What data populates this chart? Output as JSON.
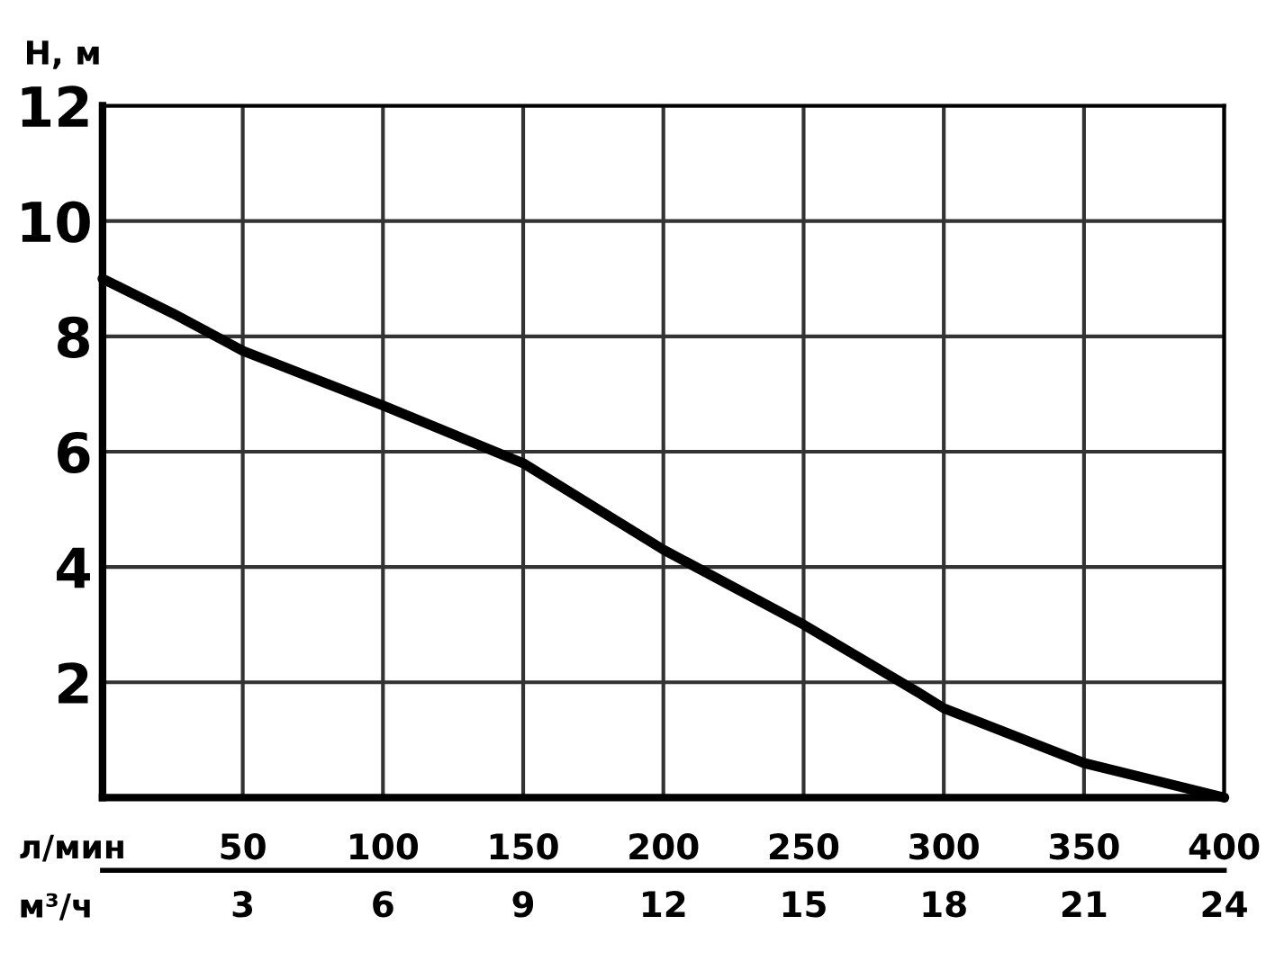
{
  "chart_data": {
    "type": "line",
    "ylabel": "H, м",
    "xlabel": "л/мин",
    "x2label": "м³/ч",
    "x": [
      0,
      25,
      50,
      100,
      150,
      200,
      250,
      290,
      300,
      350,
      400
    ],
    "series": [
      {
        "color": "#000000",
        "values": [
          9.0,
          8.4,
          7.75,
          6.8,
          5.8,
          4.3,
          3.0,
          1.85,
          1.55,
          0.6,
          0
        ]
      }
    ],
    "xlim": [
      0,
      400
    ],
    "xticks": [
      {
        "value": 0,
        "label": null
      },
      50,
      100,
      150,
      200,
      250,
      300,
      350,
      400
    ],
    "x2lim": [
      0,
      24
    ],
    "x2ticks": [
      3,
      6,
      9,
      12,
      15,
      18,
      21,
      24
    ],
    "ylim": [
      0,
      12
    ],
    "yticks": [
      {
        "value": 0,
        "label": null
      },
      2,
      4,
      6,
      8,
      10,
      12
    ],
    "grid": true,
    "marker": "none",
    "line_style": "solid",
    "legend": false
  }
}
